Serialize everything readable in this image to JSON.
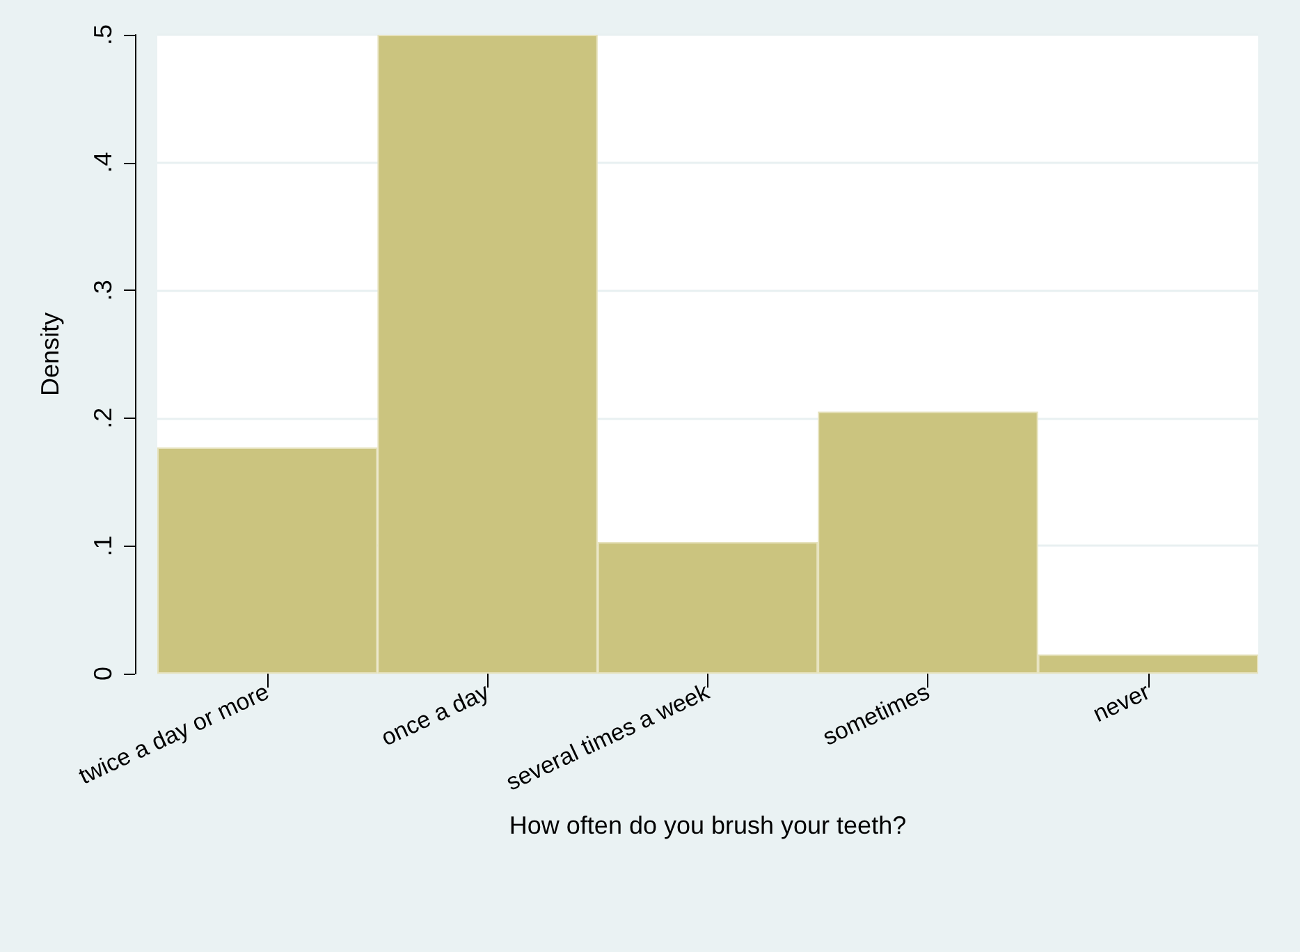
{
  "chart_data": {
    "type": "bar",
    "xlabel": "How often do you brush your teeth?",
    "ylabel": "Density",
    "categories": [
      "twice a day or more",
      "once a day",
      "several times a week",
      "sometimes",
      "never"
    ],
    "values": [
      0.177,
      0.5,
      0.103,
      0.205,
      0.015
    ],
    "color": "#cbc47f",
    "ylim": [
      0,
      0.5
    ],
    "yticks": [
      {
        "value": 0,
        "label": "0"
      },
      {
        "value": 0.1,
        "label": ".1"
      },
      {
        "value": 0.2,
        "label": ".2"
      },
      {
        "value": 0.3,
        "label": ".3"
      },
      {
        "value": 0.4,
        "label": ".4"
      },
      {
        "value": 0.5,
        "label": ".5"
      }
    ],
    "grid": "y"
  }
}
